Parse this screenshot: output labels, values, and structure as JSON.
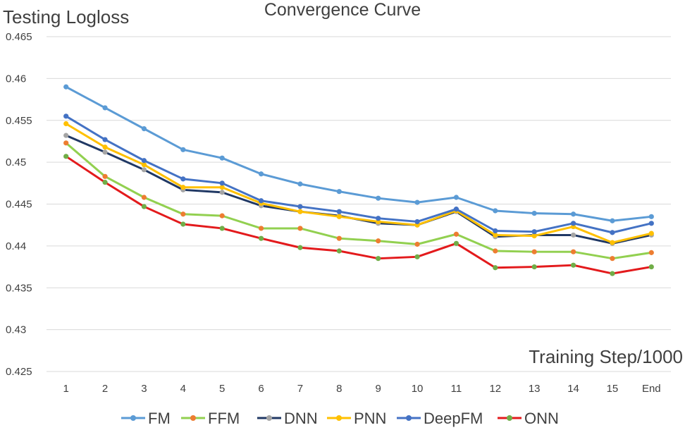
{
  "chart_data": {
    "type": "line",
    "title": "Convergence Curve",
    "ylabel": "Testing Logloss",
    "xlabel": "Training Step/1000",
    "categories": [
      "1",
      "2",
      "3",
      "4",
      "5",
      "6",
      "7",
      "8",
      "9",
      "10",
      "11",
      "12",
      "13",
      "14",
      "15",
      "End"
    ],
    "ylim": [
      0.425,
      0.465
    ],
    "yticks": [
      "0.425",
      "0.43",
      "0.435",
      "0.44",
      "0.445",
      "0.45",
      "0.455",
      "0.46",
      "0.465"
    ],
    "grid": true,
    "legend": "bottom",
    "series": [
      {
        "name": "FM",
        "color": "#5b9bd5",
        "marker": "#5b9bd5",
        "values": [
          0.459,
          0.4565,
          0.454,
          0.4515,
          0.4505,
          0.4486,
          0.4474,
          0.4465,
          0.4457,
          0.4452,
          0.4458,
          0.4442,
          0.4439,
          0.4438,
          0.443,
          0.4435
        ]
      },
      {
        "name": "FFM",
        "color": "#92d050",
        "marker": "#ed7d31",
        "values": [
          0.4523,
          0.4483,
          0.4458,
          0.4438,
          0.4436,
          0.4421,
          0.4421,
          0.4409,
          0.4406,
          0.4402,
          0.4414,
          0.4394,
          0.4393,
          0.4393,
          0.4385,
          0.4392
        ]
      },
      {
        "name": "DNN",
        "color": "#203864",
        "marker": "#a5a5a5",
        "values": [
          0.4532,
          0.4512,
          0.4491,
          0.4467,
          0.4464,
          0.4448,
          0.4441,
          0.4436,
          0.4427,
          0.4425,
          0.4441,
          0.4411,
          0.4413,
          0.4413,
          0.4403,
          0.4413
        ]
      },
      {
        "name": "PNN",
        "color": "#ffc000",
        "marker": "#ffc000",
        "values": [
          0.4546,
          0.4518,
          0.4497,
          0.447,
          0.447,
          0.4451,
          0.4441,
          0.4435,
          0.4429,
          0.4425,
          0.4442,
          0.4413,
          0.4412,
          0.4423,
          0.4404,
          0.4415
        ]
      },
      {
        "name": "DeepFM",
        "color": "#4472c4",
        "marker": "#4472c4",
        "values": [
          0.4555,
          0.4527,
          0.4502,
          0.448,
          0.4475,
          0.4454,
          0.4447,
          0.4441,
          0.4433,
          0.4429,
          0.4444,
          0.4418,
          0.4417,
          0.4427,
          0.4416,
          0.4427
        ]
      },
      {
        "name": "ONN",
        "color": "#e31a1c",
        "marker": "#70ad47",
        "values": [
          0.4507,
          0.4476,
          0.4447,
          0.4426,
          0.4421,
          0.4409,
          0.4398,
          0.4394,
          0.4385,
          0.4387,
          0.4403,
          0.4374,
          0.4375,
          0.4377,
          0.4367,
          0.4375
        ]
      }
    ]
  }
}
